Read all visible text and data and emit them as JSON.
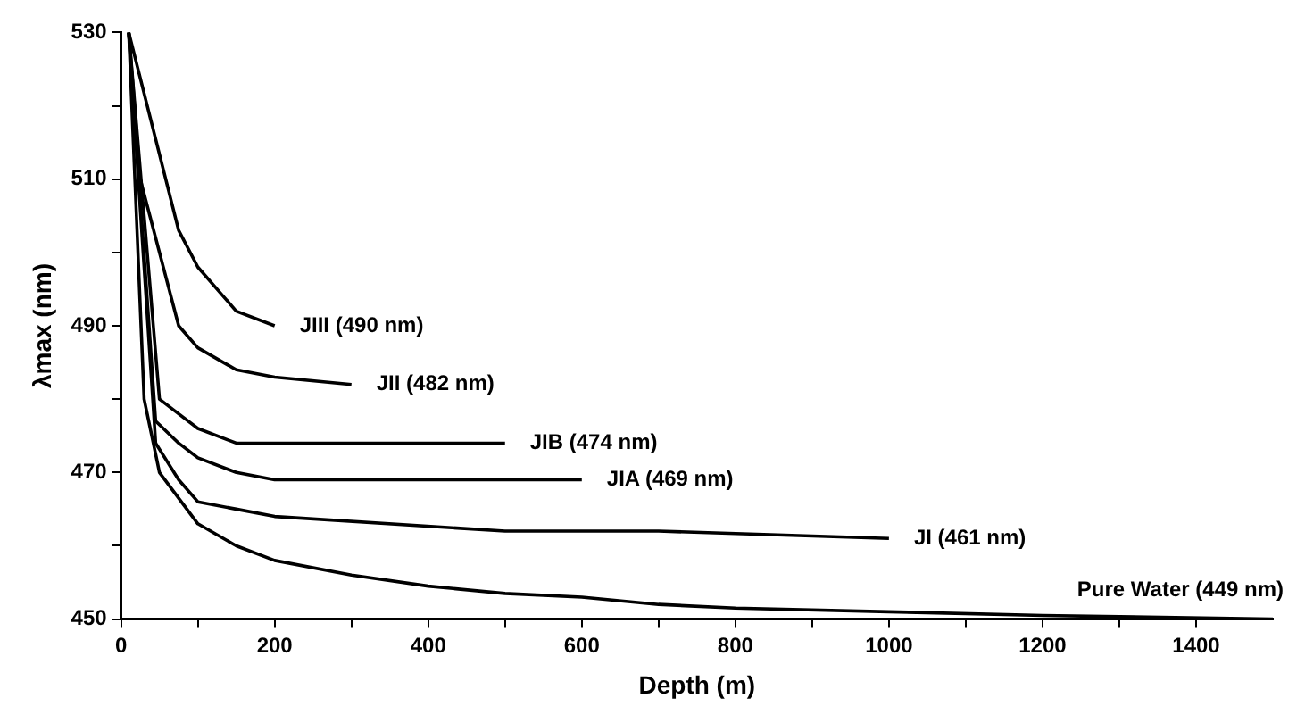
{
  "chart_data": {
    "type": "line",
    "xlabel": "Depth (m)",
    "ylabel": "λmax (nm)",
    "xlim": [
      0,
      1500
    ],
    "ylim": [
      450,
      530
    ],
    "xticks": [
      0,
      {
        "value": 100,
        "label": null
      },
      200,
      {
        "value": 300,
        "label": null
      },
      400,
      {
        "value": 500,
        "label": null
      },
      600,
      {
        "value": 700,
        "label": null
      },
      800,
      {
        "value": 900,
        "label": null
      },
      1000,
      {
        "value": 1100,
        "label": null
      },
      1200,
      {
        "value": 1300,
        "label": null
      },
      1400
    ],
    "yticks": [
      450,
      {
        "value": 460,
        "label": null
      },
      470,
      {
        "value": 480,
        "label": null
      },
      490,
      {
        "value": 500,
        "label": null
      },
      510,
      {
        "value": 520,
        "label": null
      },
      530
    ],
    "grid": false,
    "legend": false,
    "marker": "none",
    "line_style": "solid",
    "series": [
      {
        "name": "JIII (490 nm)",
        "color": "#000000",
        "x": [
          10,
          75,
          100,
          150,
          200
        ],
        "values": [
          530,
          503,
          498,
          492,
          490
        ]
      },
      {
        "name": "JII (482 nm)",
        "color": "#000000",
        "x": [
          10,
          25,
          75,
          100,
          150,
          200,
          300
        ],
        "values": [
          530,
          510,
          490,
          487,
          484,
          483,
          482
        ]
      },
      {
        "name": "JIB (474 nm)",
        "color": "#000000",
        "x": [
          10,
          50,
          75,
          100,
          150,
          500
        ],
        "values": [
          530,
          480,
          478,
          476,
          474,
          474
        ]
      },
      {
        "name": "JIA (469 nm)",
        "color": "#000000",
        "x": [
          10,
          45,
          75,
          100,
          150,
          200,
          600
        ],
        "values": [
          530,
          477,
          474,
          472,
          470,
          469,
          469
        ]
      },
      {
        "name": "JI (461 nm)",
        "color": "#000000",
        "x": [
          10,
          45,
          75,
          100,
          150,
          200,
          500,
          700,
          1000
        ],
        "values": [
          530,
          474,
          469,
          466,
          465,
          464,
          462,
          462,
          461
        ]
      },
      {
        "name": "Pure Water (449 nm)",
        "color": "#000000",
        "x": [
          10,
          30,
          50,
          100,
          150,
          200,
          300,
          400,
          500,
          600,
          700,
          800,
          1000,
          1200,
          1500
        ],
        "values": [
          530,
          480,
          470,
          463,
          460,
          458,
          456,
          454.5,
          453.5,
          453,
          452,
          451.5,
          451,
          450.5,
          450
        ]
      }
    ]
  }
}
